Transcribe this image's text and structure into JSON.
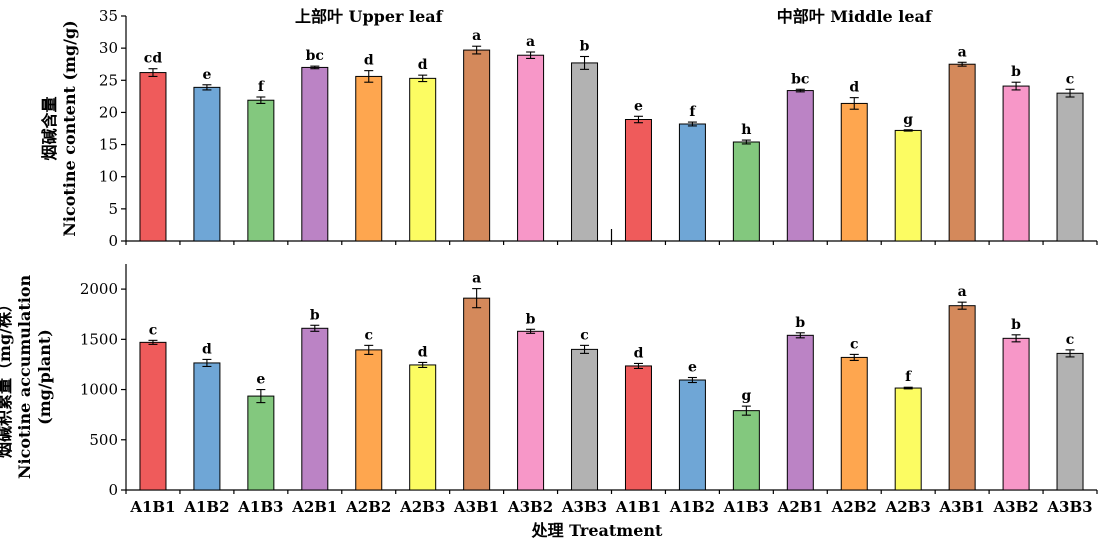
{
  "chart_data": [
    {
      "type": "bar",
      "panel": "top",
      "ylabel": "烟碱含量 Nicotine content (mg/g)",
      "ylabel_lines": [
        "烟碱含量",
        "Nicotine content (mg/g)"
      ],
      "ylim": [
        0,
        35
      ],
      "yticks": [
        0,
        5,
        10,
        15,
        20,
        25,
        30,
        35
      ],
      "groups": [
        {
          "title": "上部叶 Upper leaf",
          "categories": [
            "A1B1",
            "A1B2",
            "A1B3",
            "A2B1",
            "A2B2",
            "A2B3",
            "A3B1",
            "A3B2",
            "A3B3"
          ],
          "values": [
            26.2,
            23.9,
            21.9,
            27.0,
            25.6,
            25.3,
            29.7,
            28.9,
            27.7
          ],
          "errors": [
            0.6,
            0.4,
            0.5,
            0.2,
            0.9,
            0.5,
            0.6,
            0.5,
            1.0
          ],
          "letters": [
            "cd",
            "e",
            "f",
            "bc",
            "d",
            "d",
            "a",
            "a",
            "b"
          ]
        },
        {
          "title": "中部叶 Middle leaf",
          "categories": [
            "A1B1",
            "A1B2",
            "A1B3",
            "A2B1",
            "A2B2",
            "A2B3",
            "A3B1",
            "A3B2",
            "A3B3"
          ],
          "values": [
            18.9,
            18.2,
            15.4,
            23.4,
            21.4,
            17.2,
            27.5,
            24.1,
            23.0
          ],
          "errors": [
            0.5,
            0.3,
            0.3,
            0.2,
            0.9,
            0.1,
            0.3,
            0.6,
            0.6
          ],
          "letters": [
            "e",
            "f",
            "h",
            "bc",
            "d",
            "g",
            "a",
            "b",
            "c"
          ]
        }
      ]
    },
    {
      "type": "bar",
      "panel": "bottom",
      "xlabel": "处理 Treatment",
      "ylabel": "烟碱积累量（mg/株） Nicotine accumulation (mg/plant)",
      "ylabel_lines": [
        "烟碱积累量（mg/株）",
        "Nicotine accumulation",
        "(mg/plant)"
      ],
      "ylim": [
        0,
        2250
      ],
      "yticks": [
        0,
        500,
        1000,
        1500,
        2000
      ],
      "groups": [
        {
          "title": "",
          "categories": [
            "A1B1",
            "A1B2",
            "A1B3",
            "A2B1",
            "A2B2",
            "A2B3",
            "A3B1",
            "A3B2",
            "A3B3"
          ],
          "values": [
            1470,
            1265,
            935,
            1610,
            1395,
            1245,
            1910,
            1580,
            1400
          ],
          "errors": [
            20,
            35,
            65,
            30,
            45,
            25,
            95,
            20,
            40
          ],
          "letters": [
            "c",
            "d",
            "e",
            "b",
            "c",
            "d",
            "a",
            "b",
            "c"
          ]
        },
        {
          "title": "",
          "categories": [
            "A1B1",
            "A1B2",
            "A1B3",
            "A2B1",
            "A2B2",
            "A2B3",
            "A3B1",
            "A3B2",
            "A3B3"
          ],
          "values": [
            1235,
            1095,
            790,
            1540,
            1320,
            1015,
            1835,
            1510,
            1360
          ],
          "errors": [
            25,
            25,
            45,
            25,
            30,
            8,
            35,
            35,
            35
          ],
          "letters": [
            "d",
            "e",
            "g",
            "b",
            "c",
            "f",
            "a",
            "b",
            "c"
          ]
        }
      ]
    }
  ],
  "colors": [
    "#ef5b5b",
    "#6fa6d6",
    "#83c87e",
    "#bb83c5",
    "#fea64f",
    "#fcfc62",
    "#d4895b",
    "#f797c8",
    "#b2b2b2"
  ]
}
